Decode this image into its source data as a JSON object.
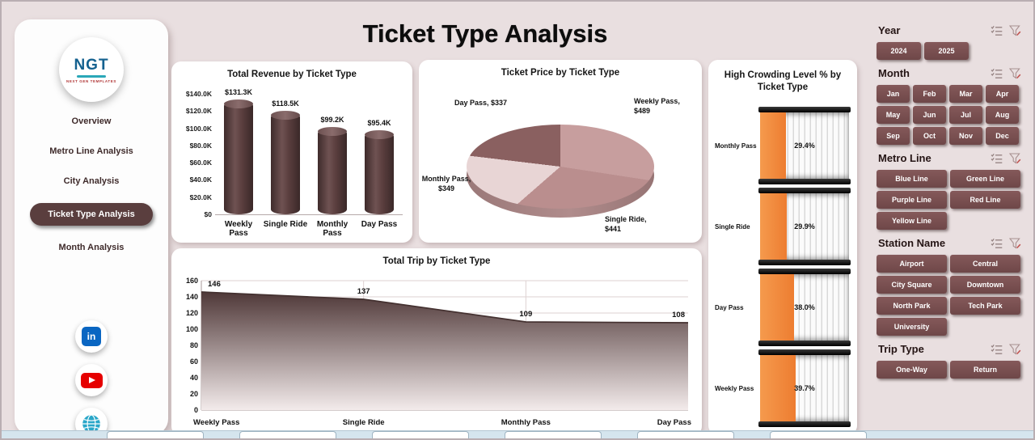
{
  "page": {
    "title": "Ticket Type Analysis"
  },
  "sidebar": {
    "logo": {
      "text": "NGT",
      "subtext": "NEXT GEN TEMPLATES"
    },
    "nav": [
      {
        "label": "Overview",
        "active": false
      },
      {
        "label": "Metro Line Analysis",
        "active": false
      },
      {
        "label": "City Analysis",
        "active": false
      },
      {
        "label": "Ticket Type Analysis",
        "active": true
      },
      {
        "label": "Month Analysis",
        "active": false
      }
    ],
    "social": [
      {
        "name": "linkedin",
        "label": "in"
      },
      {
        "name": "youtube"
      },
      {
        "name": "website"
      }
    ]
  },
  "chart_data": [
    {
      "id": "revenue_by_ticket_type",
      "type": "bar",
      "title": "Total Revenue by Ticket Type",
      "categories": [
        "Weekly Pass",
        "Single Ride",
        "Monthly Pass",
        "Day Pass"
      ],
      "values": [
        131300,
        118500,
        99200,
        95400
      ],
      "value_labels": [
        "$131.3K",
        "$118.5K",
        "$99.2K",
        "$95.4K"
      ],
      "ylim": [
        0,
        140000
      ],
      "ytick_labels": [
        "$0",
        "$20.0K",
        "$40.0K",
        "$60.0K",
        "$80.0K",
        "$100.0K",
        "$120.0K",
        "$140.0K"
      ],
      "bar_color": "#5a3e3e"
    },
    {
      "id": "price_by_ticket_type",
      "type": "pie",
      "title": "Ticket Price by Ticket Type",
      "slices": [
        {
          "label": "Weekly Pass",
          "value": 489,
          "label_lines": [
            "Weekly Pass,",
            "$489"
          ],
          "color": "#c79e9e"
        },
        {
          "label": "Single Ride",
          "value": 441,
          "label_lines": [
            "Single Ride,",
            "$441"
          ],
          "color": "#ba8e8e"
        },
        {
          "label": "Monthly Pass",
          "value": 349,
          "label_lines": [
            "Monthly Pass,",
            "$349"
          ],
          "color": "#e8d5d5"
        },
        {
          "label": "Day Pass",
          "value": 337,
          "label_lines": [
            "Day Pass, $337"
          ],
          "color": "#8a6060"
        }
      ],
      "start_angle_deg": 0,
      "direction": "clockwise",
      "legend": "none"
    },
    {
      "id": "crowding_by_ticket_type",
      "type": "bar",
      "title": "High Crowding Level % by Ticket Type",
      "categories": [
        "Monthly Pass",
        "Single Ride",
        "Day Pass",
        "Weekly Pass"
      ],
      "values": [
        29.4,
        29.9,
        38.0,
        39.7
      ],
      "value_labels": [
        "29.4%",
        "29.9%",
        "38.0%",
        "39.7%"
      ],
      "fill_color": "#ed7d31"
    },
    {
      "id": "trips_by_ticket_type",
      "type": "area",
      "title": "Total Trip by Ticket Type",
      "categories": [
        "Weekly Pass",
        "Single Ride",
        "Monthly Pass",
        "Day Pass"
      ],
      "values": [
        146,
        137,
        109,
        108
      ],
      "ylim": [
        0,
        160
      ],
      "ytick_step": 20,
      "ytick_labels": [
        "0",
        "20",
        "40",
        "60",
        "80",
        "100",
        "120",
        "140",
        "160"
      ],
      "area_color_top": "#4f3838",
      "area_color_bottom": "#f3ebeb",
      "grid": true
    }
  ],
  "filters": {
    "sections": [
      {
        "title": "Year",
        "cols": 3,
        "options": [
          "2024",
          "2025"
        ]
      },
      {
        "title": "Month",
        "cols": 4,
        "options": [
          "Jan",
          "Feb",
          "Mar",
          "Apr",
          "May",
          "Jun",
          "Jul",
          "Aug",
          "Sep",
          "Oct",
          "Nov",
          "Dec"
        ]
      },
      {
        "title": "Metro Line",
        "cols": 2,
        "options": [
          "Blue Line",
          "Green Line",
          "Purple Line",
          "Red Line",
          "Yellow Line"
        ]
      },
      {
        "title": "Station Name",
        "cols": 2,
        "options": [
          "Airport",
          "Central",
          "City Square",
          "Downtown",
          "North Park",
          "Tech Park",
          "University"
        ]
      },
      {
        "title": "Trip Type",
        "cols": 2,
        "options": [
          "One-Way",
          "Return"
        ]
      }
    ]
  },
  "colors": {
    "accent": "#5a3e3e",
    "filter_button": "#7a5252",
    "gauge_fill": "#ed7d31",
    "background": "#e9dfe0"
  }
}
